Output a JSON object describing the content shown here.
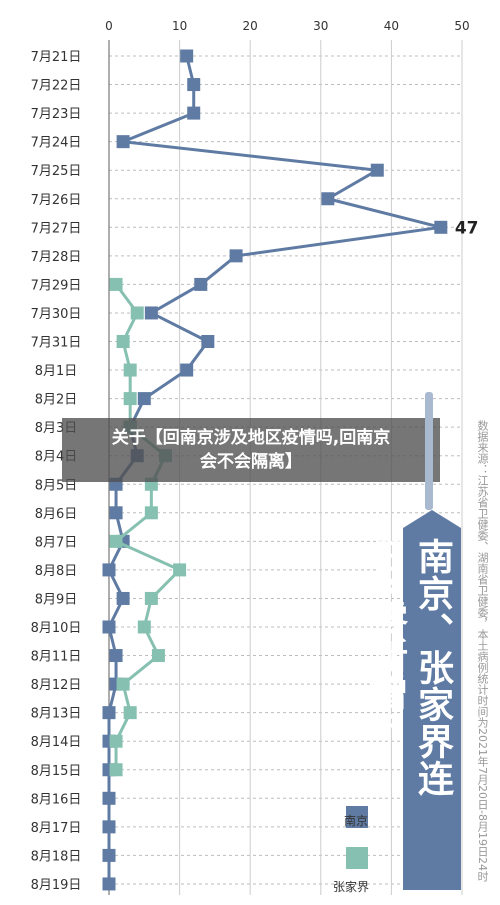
{
  "overlay": {
    "line1": "关于【回南京涉及地区疫情吗,回南京",
    "line2": "会不会隔离】"
  },
  "side_title": "南京、张家界连日“零新增”",
  "source_note": "数据来源：江苏省卫健委、湖南省卫健委，本土病例统计时间为2021年7月20日-8月19日24时",
  "legend": [
    {
      "label": "南京",
      "color": "#5f7ba3"
    },
    {
      "label": "张家界",
      "color": "#86c0b0"
    }
  ],
  "chart_data": {
    "type": "line",
    "orientation": "horizontal",
    "categories": [
      "7月21日",
      "7月22日",
      "7月23日",
      "7月24日",
      "7月25日",
      "7月26日",
      "7月27日",
      "7月28日",
      "7月29日",
      "7月30日",
      "7月31日",
      "8月1日",
      "8月2日",
      "8月3日",
      "8月4日",
      "8月5日",
      "8月6日",
      "8月7日",
      "8月8日",
      "8月9日",
      "8月10日",
      "8月11日",
      "8月12日",
      "8月13日",
      "8月14日",
      "8月15日",
      "8月16日",
      "8月17日",
      "8月18日",
      "8月19日"
    ],
    "x_ticks": [
      0,
      10,
      20,
      30,
      40,
      50
    ],
    "xlim": [
      0,
      50
    ],
    "grid": true,
    "annotation": "47",
    "series": [
      {
        "name": "南京",
        "color": "#5f7ba3",
        "values": [
          11,
          12,
          12,
          2,
          38,
          31,
          47,
          18,
          13,
          6,
          14,
          11,
          5,
          3,
          4,
          1,
          1,
          2,
          0,
          2,
          0,
          1,
          1,
          0,
          0,
          0,
          0,
          0,
          0,
          0
        ]
      },
      {
        "name": "张家界",
        "color": "#86c0b0",
        "values": [
          null,
          null,
          null,
          null,
          null,
          null,
          null,
          null,
          1,
          4,
          2,
          3,
          3,
          3,
          8,
          6,
          6,
          1,
          10,
          6,
          5,
          7,
          2,
          3,
          1,
          1,
          null,
          null,
          null,
          null
        ]
      }
    ]
  }
}
